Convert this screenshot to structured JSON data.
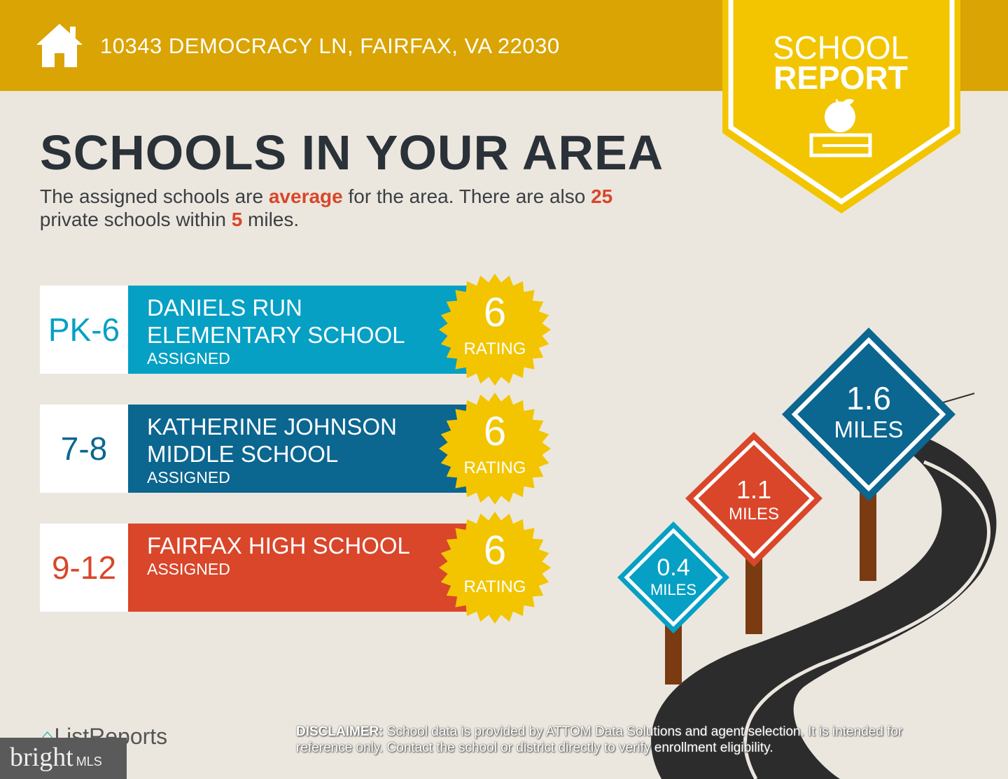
{
  "header": {
    "address": "10343 DEMOCRACY LN, FAIRFAX, VA 22030",
    "icon": "home-icon"
  },
  "badge": {
    "line1": "SCHOOL",
    "line2": "REPORT",
    "icon": "apple-books-icon"
  },
  "title": "SCHOOLS IN YOUR AREA",
  "summary": {
    "p1": "The assigned schools are ",
    "quality": "average",
    "p2": " for the area. There are also ",
    "count": "25",
    "p3": " private schools within ",
    "miles": "5",
    "p4": " miles."
  },
  "schools": [
    {
      "grade": "PK-6",
      "name1": "DANIELS RUN",
      "name2": "ELEMENTARY SCHOOL",
      "status": "ASSIGNED",
      "rating": "6",
      "rating_label": "RATING",
      "color": "#06a0c4",
      "distance": "0.4",
      "distance_unit": "MILES"
    },
    {
      "grade": "7-8",
      "name1": "KATHERINE JOHNSON",
      "name2": "MIDDLE SCHOOL",
      "status": "ASSIGNED",
      "rating": "6",
      "rating_label": "RATING",
      "color": "#0b6690",
      "distance": "1.6",
      "distance_unit": "MILES"
    },
    {
      "grade": "9-12",
      "name1": "FAIRFAX HIGH SCHOOL",
      "name2": "",
      "status": "ASSIGNED",
      "rating": "6",
      "rating_label": "RATING",
      "color": "#d9462a",
      "distance": "1.1",
      "distance_unit": "MILES"
    }
  ],
  "footer": {
    "disclaimer_label": "DISCLAIMER:",
    "disclaimer": " School data is provided by ATTOM Data Solutions and agent selection. It is intended for reference only. Contact the school or district directly to verify enrollment eligibility.",
    "listreports": "ListReports",
    "bright": "bright",
    "mls": "MLS"
  }
}
